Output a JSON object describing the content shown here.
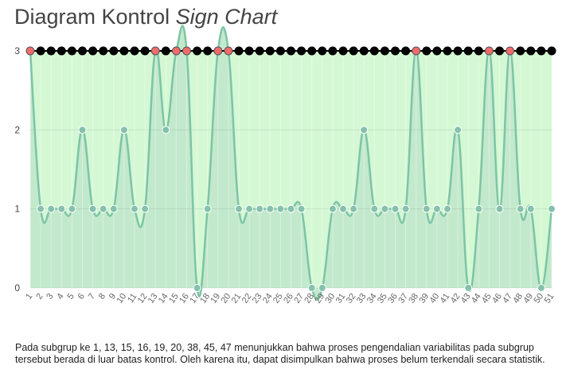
{
  "chart_data": {
    "type": "line",
    "title_main": "Diagram Kontrol ",
    "title_emph": "Sign Chart",
    "x": [
      1,
      2,
      3,
      4,
      5,
      6,
      7,
      8,
      9,
      10,
      11,
      12,
      13,
      14,
      15,
      16,
      17,
      18,
      19,
      20,
      21,
      22,
      23,
      24,
      25,
      26,
      27,
      28,
      29,
      30,
      31,
      32,
      33,
      34,
      35,
      36,
      37,
      38,
      39,
      40,
      41,
      42,
      43,
      44,
      45,
      46,
      47,
      48,
      49,
      50,
      51
    ],
    "series": [
      {
        "values": [
          3,
          1,
          1,
          1,
          1,
          2,
          1,
          1,
          1,
          2,
          1,
          1,
          3,
          2,
          3,
          3,
          0,
          1,
          3,
          3,
          1,
          1,
          1,
          1,
          1,
          1,
          1,
          0,
          0,
          1,
          1,
          1,
          2,
          1,
          1,
          1,
          1,
          3,
          1,
          1,
          1,
          2,
          0,
          1,
          3,
          1,
          3,
          1,
          1,
          0,
          1
        ],
        "color": "#7dc4a6"
      },
      {
        "values": [
          3,
          3,
          3,
          3,
          3,
          3,
          3,
          3,
          3,
          3,
          3,
          3,
          3,
          3,
          3,
          3,
          3,
          3,
          3,
          3,
          3,
          3,
          3,
          3,
          3,
          3,
          3,
          3,
          3,
          3,
          3,
          3,
          3,
          3,
          3,
          3,
          3,
          3,
          3,
          3,
          3,
          3,
          3,
          3,
          3,
          3,
          3,
          3,
          3,
          3,
          3
        ],
        "color": "#000000"
      }
    ],
    "out_of_control": [
      1,
      13,
      15,
      16,
      19,
      20,
      38,
      45,
      47
    ],
    "ylim": [
      0,
      3
    ],
    "yticks": [
      0,
      1,
      2,
      3
    ],
    "grid": true,
    "colors": {
      "area_upper": "#d4f8d4",
      "area_lower": "#c3e9cc",
      "line": "#7dc4a6",
      "point": "#85c1ad",
      "limit_point": "#000000",
      "out_point": "#f06b6b"
    }
  },
  "caption": "Pada subgrup ke 1, 13, 15, 16, 19, 20, 38, 45, 47 menunjukkan bahwa proses pengendalian variabilitas pada subgrup tersebut berada di luar batas kontrol. Oleh karena itu, dapat disimpulkan bahwa proses belum terkendali secara statistik."
}
